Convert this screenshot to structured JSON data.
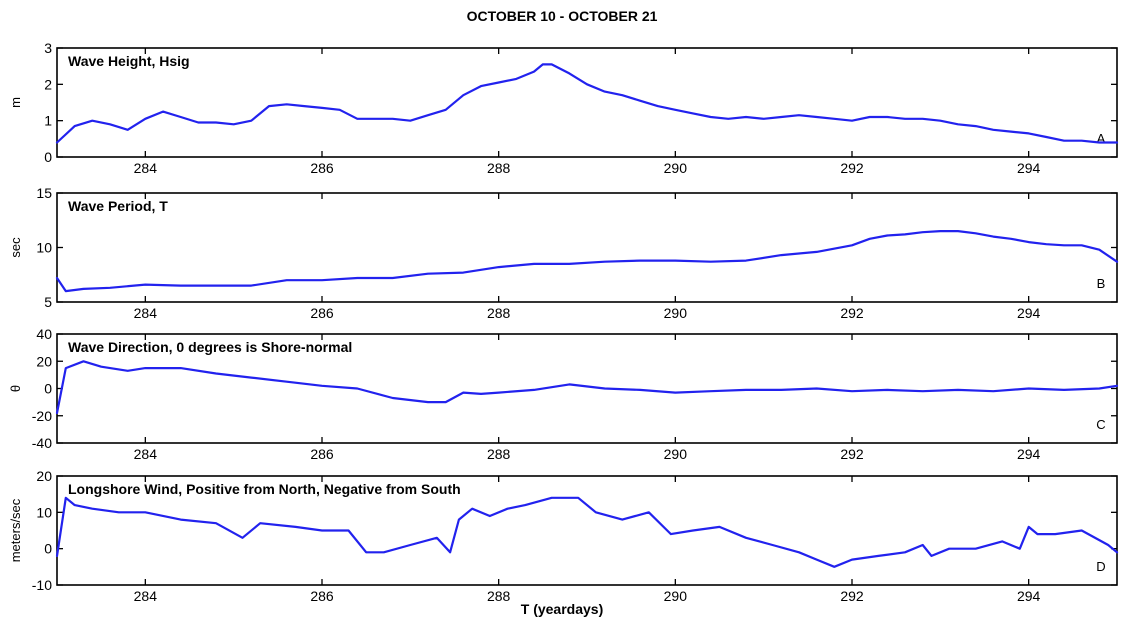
{
  "figure_title": "OCTOBER 10 - OCTOBER 21",
  "xlabel": "T (yeardays)",
  "chart_data": [
    {
      "type": "line",
      "title": "Wave Height, Hsig",
      "ylabel": "m",
      "corner_label": "A",
      "xlim": [
        283,
        295
      ],
      "ylim": [
        0,
        3
      ],
      "xticks": [
        284,
        286,
        288,
        290,
        292,
        294
      ],
      "yticks": [
        0,
        1,
        2,
        3
      ],
      "color": "#2222ee",
      "x": [
        283.0,
        283.2,
        283.4,
        283.6,
        283.8,
        284.0,
        284.2,
        284.4,
        284.6,
        284.8,
        285.0,
        285.2,
        285.4,
        285.6,
        285.8,
        286.0,
        286.2,
        286.4,
        286.6,
        286.8,
        287.0,
        287.2,
        287.4,
        287.6,
        287.8,
        288.0,
        288.2,
        288.4,
        288.5,
        288.6,
        288.8,
        289.0,
        289.2,
        289.4,
        289.6,
        289.8,
        290.0,
        290.2,
        290.4,
        290.6,
        290.8,
        291.0,
        291.2,
        291.4,
        291.6,
        291.8,
        292.0,
        292.2,
        292.4,
        292.6,
        292.8,
        293.0,
        293.2,
        293.4,
        293.6,
        293.8,
        294.0,
        294.2,
        294.4,
        294.6,
        294.8,
        295.0
      ],
      "values": [
        0.4,
        0.85,
        1.0,
        0.9,
        0.75,
        1.05,
        1.25,
        1.1,
        0.95,
        0.95,
        0.9,
        1.0,
        1.4,
        1.45,
        1.4,
        1.35,
        1.3,
        1.05,
        1.05,
        1.05,
        1.0,
        1.15,
        1.3,
        1.7,
        1.95,
        2.05,
        2.15,
        2.35,
        2.55,
        2.55,
        2.3,
        2.0,
        1.8,
        1.7,
        1.55,
        1.4,
        1.3,
        1.2,
        1.1,
        1.05,
        1.1,
        1.05,
        1.1,
        1.15,
        1.1,
        1.05,
        1.0,
        1.1,
        1.1,
        1.05,
        1.05,
        1.0,
        0.9,
        0.85,
        0.75,
        0.7,
        0.65,
        0.55,
        0.45,
        0.45,
        0.4,
        0.4
      ]
    },
    {
      "type": "line",
      "title": "Wave Period, T",
      "ylabel": "sec",
      "corner_label": "B",
      "xlim": [
        283,
        295
      ],
      "ylim": [
        5,
        15
      ],
      "xticks": [
        284,
        286,
        288,
        290,
        292,
        294
      ],
      "yticks": [
        5,
        10,
        15
      ],
      "color": "#2222ee",
      "x": [
        283.0,
        283.1,
        283.3,
        283.6,
        284.0,
        284.4,
        284.8,
        285.2,
        285.6,
        286.0,
        286.4,
        286.8,
        287.2,
        287.6,
        288.0,
        288.4,
        288.8,
        289.2,
        289.6,
        290.0,
        290.4,
        290.8,
        291.2,
        291.6,
        292.0,
        292.2,
        292.4,
        292.6,
        292.8,
        293.0,
        293.2,
        293.4,
        293.6,
        293.8,
        294.0,
        294.2,
        294.4,
        294.6,
        294.8,
        295.0
      ],
      "values": [
        7.2,
        6.0,
        6.2,
        6.3,
        6.6,
        6.5,
        6.5,
        6.5,
        7.0,
        7.0,
        7.2,
        7.2,
        7.6,
        7.7,
        8.2,
        8.5,
        8.5,
        8.7,
        8.8,
        8.8,
        8.7,
        8.8,
        9.3,
        9.6,
        10.2,
        10.8,
        11.1,
        11.2,
        11.4,
        11.5,
        11.5,
        11.3,
        11.0,
        10.8,
        10.5,
        10.3,
        10.2,
        10.2,
        9.8,
        8.7
      ]
    },
    {
      "type": "line",
      "title": "Wave Direction, 0 degrees is Shore-normal",
      "ylabel": "θ",
      "corner_label": "C",
      "xlim": [
        283,
        295
      ],
      "ylim": [
        -40,
        40
      ],
      "xticks": [
        284,
        286,
        288,
        290,
        292,
        294
      ],
      "yticks": [
        -40,
        -20,
        0,
        20,
        40
      ],
      "color": "#2222ee",
      "x": [
        283.0,
        283.1,
        283.3,
        283.5,
        283.8,
        284.0,
        284.4,
        284.8,
        285.2,
        285.6,
        286.0,
        286.4,
        286.8,
        287.2,
        287.4,
        287.6,
        287.8,
        288.0,
        288.4,
        288.8,
        289.2,
        289.6,
        290.0,
        290.4,
        290.8,
        291.2,
        291.6,
        292.0,
        292.4,
        292.8,
        293.2,
        293.6,
        294.0,
        294.4,
        294.8,
        295.0
      ],
      "values": [
        -18,
        15,
        20,
        16,
        13,
        15,
        15,
        11,
        8,
        5,
        2,
        0,
        -7,
        -10,
        -10,
        -3,
        -4,
        -3,
        -1,
        3,
        0,
        -1,
        -3,
        -2,
        -1,
        -1,
        0,
        -2,
        -1,
        -2,
        -1,
        -2,
        0,
        -1,
        0,
        2
      ]
    },
    {
      "type": "line",
      "title": "Longshore Wind, Positive from North, Negative from South",
      "ylabel": "meters/sec",
      "corner_label": "D",
      "xlim": [
        283,
        295
      ],
      "ylim": [
        -10,
        20
      ],
      "xticks": [
        284,
        286,
        288,
        290,
        292,
        294
      ],
      "yticks": [
        -10,
        0,
        10,
        20
      ],
      "color": "#2222ee",
      "x": [
        283.0,
        283.1,
        283.2,
        283.4,
        283.7,
        284.0,
        284.4,
        284.8,
        285.1,
        285.3,
        285.7,
        286.0,
        286.3,
        286.5,
        286.7,
        287.0,
        287.3,
        287.45,
        287.55,
        287.7,
        287.9,
        288.1,
        288.3,
        288.6,
        288.9,
        289.1,
        289.4,
        289.7,
        289.95,
        290.2,
        290.5,
        290.8,
        291.1,
        291.4,
        291.6,
        291.8,
        292.0,
        292.3,
        292.6,
        292.8,
        292.9,
        293.1,
        293.4,
        293.7,
        293.9,
        294.0,
        294.1,
        294.3,
        294.6,
        294.9,
        295.0
      ],
      "values": [
        -2,
        14,
        12,
        11,
        10,
        10,
        8,
        7,
        3,
        7,
        6,
        5,
        5,
        -1,
        -1,
        1,
        3,
        -1,
        8,
        11,
        9,
        11,
        12,
        14,
        14,
        10,
        8,
        10,
        4,
        5,
        6,
        3,
        1,
        -1,
        -3,
        -5,
        -3,
        -2,
        -1,
        1,
        -2,
        0,
        0,
        2,
        0,
        6,
        4,
        4,
        5,
        1,
        -1
      ]
    }
  ]
}
